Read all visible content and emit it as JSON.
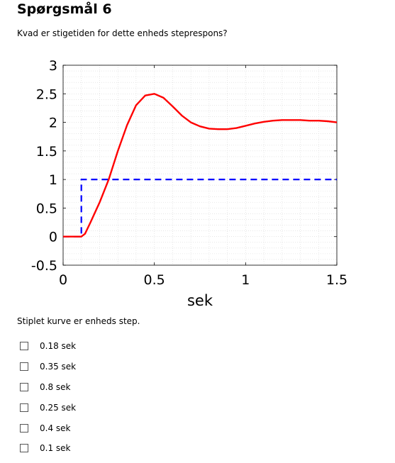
{
  "question": {
    "title": "Spørgsmål 6",
    "text": "Kvad er stigetiden for dette enheds steprespons?",
    "note": "Stiplet kurve er enheds step."
  },
  "options": [
    "0.18 sek",
    "0.35 sek",
    "0.8 sek",
    "0.25 sek",
    "0.4 sek",
    "0.1 sek"
  ],
  "chart_data": {
    "type": "line",
    "xlabel": "sek",
    "ylabel": "",
    "title": "",
    "xlim": [
      0,
      1.5
    ],
    "ylim": [
      -0.5,
      3
    ],
    "xticks": [
      "0",
      "0.5",
      "1",
      "1.5"
    ],
    "yticks": [
      "-0.5",
      "0",
      "0.5",
      "1",
      "1.5",
      "2",
      "2.5",
      "3"
    ],
    "grid": "minor dotted",
    "series": [
      {
        "color": "#ff0000",
        "style": "solid",
        "x": [
          0,
          0.1,
          0.12,
          0.15,
          0.2,
          0.25,
          0.3,
          0.35,
          0.4,
          0.45,
          0.5,
          0.55,
          0.6,
          0.65,
          0.7,
          0.75,
          0.8,
          0.85,
          0.9,
          0.95,
          1.0,
          1.05,
          1.1,
          1.15,
          1.2,
          1.25,
          1.3,
          1.35,
          1.4,
          1.45,
          1.5
        ],
        "y": [
          0,
          0,
          0.05,
          0.25,
          0.6,
          1.0,
          1.5,
          1.95,
          2.3,
          2.47,
          2.5,
          2.43,
          2.28,
          2.12,
          2.0,
          1.93,
          1.89,
          1.88,
          1.88,
          1.9,
          1.94,
          1.98,
          2.01,
          2.03,
          2.04,
          2.04,
          2.04,
          2.03,
          2.03,
          2.02,
          2.0
        ]
      },
      {
        "color": "#0000ff",
        "style": "dashed",
        "x": [
          0,
          0.1,
          0.1,
          1.5
        ],
        "y": [
          0,
          0,
          1,
          1
        ]
      }
    ]
  }
}
